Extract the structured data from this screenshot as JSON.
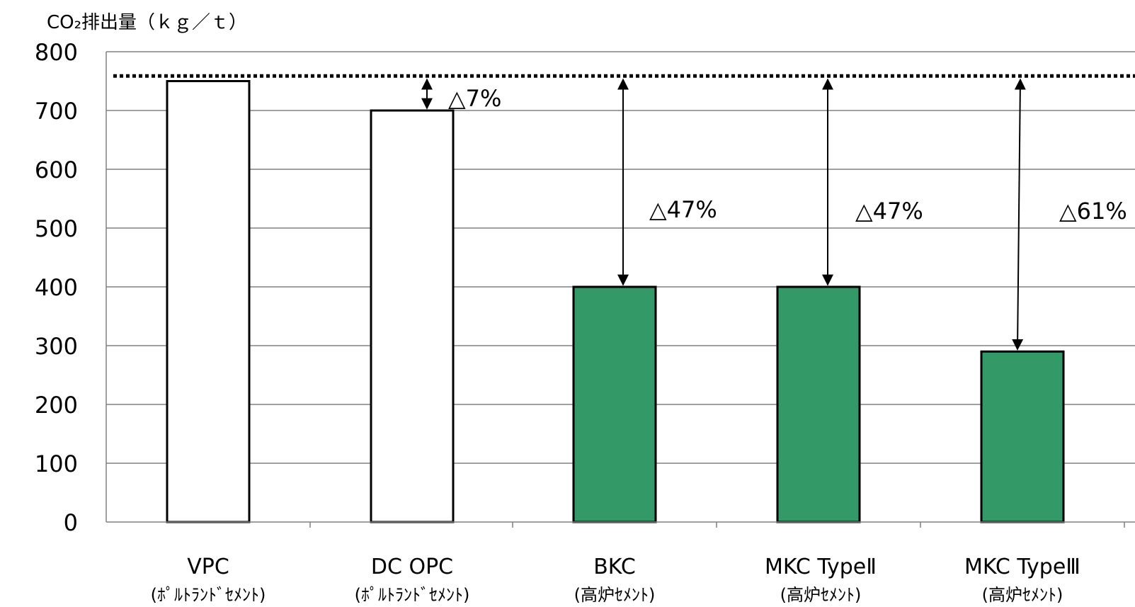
{
  "chart_data": {
    "type": "bar",
    "ylabel": "CO₂排出量（ｋｇ／ｔ）",
    "ylim": [
      0,
      800
    ],
    "yticks": [
      0,
      100,
      200,
      300,
      400,
      500,
      600,
      700,
      800
    ],
    "grid": true,
    "categories": [
      {
        "label": "VPC",
        "sublabel": "(ﾎﾟﾙﾄﾗﾝﾄﾞｾﾒﾝﾄ)"
      },
      {
        "label": "DC OPC",
        "sublabel": "(ﾎﾟﾙﾄﾗﾝﾄﾞｾﾒﾝﾄ)"
      },
      {
        "label": "BKC",
        "sublabel": "(高炉ｾﾒﾝﾄ)"
      },
      {
        "label": "MKC TypeⅡ",
        "sublabel": "(高炉ｾﾒﾝﾄ)"
      },
      {
        "label": "MKC TypeⅢ",
        "sublabel": "(高炉ｾﾒﾝﾄ)"
      }
    ],
    "values": [
      750,
      700,
      400,
      400,
      290
    ],
    "bar_colors": [
      "#ffffff",
      "#ffffff",
      "#339966",
      "#339966",
      "#339966"
    ],
    "reference_line": 760,
    "annotations": [
      "△7%",
      "△47%",
      "△47%",
      "△61%"
    ]
  }
}
